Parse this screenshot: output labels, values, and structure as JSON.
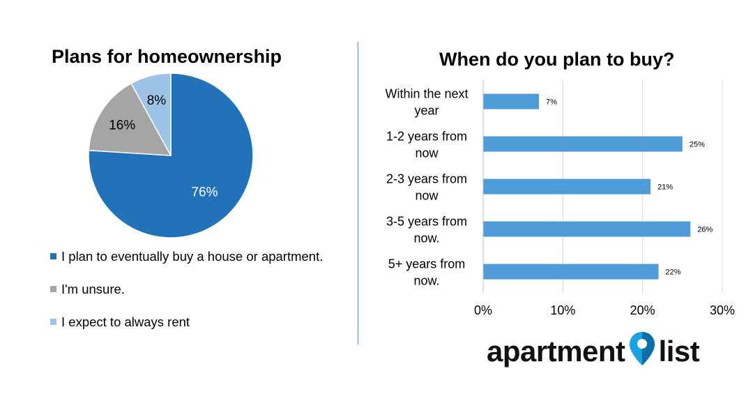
{
  "pie_title": "Plans for homeownership",
  "bar_title": "When do you plan to buy?",
  "logo": {
    "left": "apartment",
    "right": "list"
  },
  "colors": {
    "pie_blue": "#2172b9",
    "pie_gray": "#a5a5a5",
    "pie_light": "#9dc3e6",
    "bar": "#4f9bd8",
    "divider": "#4a90c8",
    "grid": "#d9d9d9"
  },
  "chart_data": [
    {
      "type": "pie",
      "title": "Plans for homeownership",
      "slices": [
        {
          "label": "I plan to eventually buy a house or apartment.",
          "value": 76,
          "display": "76%",
          "color": "#2172b9"
        },
        {
          "label": "I'm unsure.",
          "value": 16,
          "display": "16%",
          "color": "#a5a5a5"
        },
        {
          "label": "I expect to always rent",
          "value": 8,
          "display": "8%",
          "color": "#9dc3e6"
        }
      ],
      "legend_position": "bottom"
    },
    {
      "type": "bar",
      "orientation": "horizontal",
      "title": "When do you plan to buy?",
      "categories": [
        "Within the next year",
        "1-2 years from now",
        "2-3 years from now",
        "3-5 years from now.",
        "5+ years from now."
      ],
      "category_lines": [
        [
          "Within the next",
          "year"
        ],
        [
          "1-2 years from",
          "now"
        ],
        [
          "2-3 years from",
          "now"
        ],
        [
          "3-5 years from",
          "now."
        ],
        [
          "5+ years from",
          "now."
        ]
      ],
      "values": [
        7,
        25,
        21,
        26,
        22
      ],
      "value_labels": [
        "7%",
        "25%",
        "21%",
        "26%",
        "22%"
      ],
      "xlim": [
        0,
        30
      ],
      "xticks": [
        0,
        10,
        20,
        30
      ],
      "xtick_labels": [
        "0%",
        "10%",
        "20%",
        "30%"
      ],
      "grid": true
    }
  ]
}
